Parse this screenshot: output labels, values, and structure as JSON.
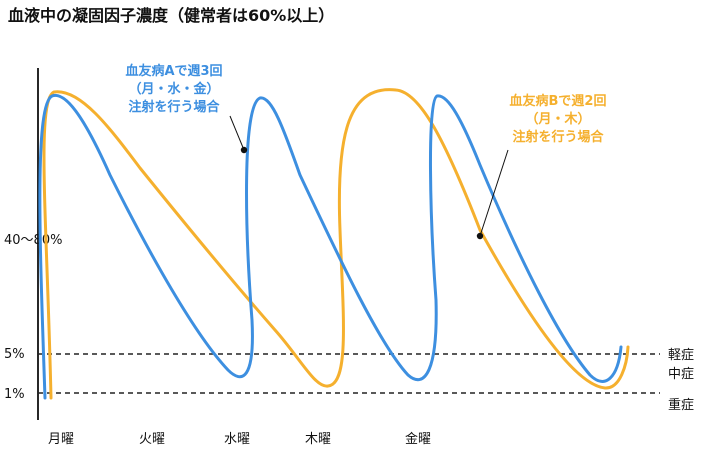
{
  "title": "血液中の凝固因子濃度（健常者は60%以上）",
  "colors": {
    "hemophilia_a": "#3d8fe0",
    "hemophilia_b": "#f5b02e",
    "axis": "#111111"
  },
  "chart_data": {
    "type": "line",
    "title": "血液中の凝固因子濃度（健常者は60%以上）",
    "x_categories": [
      "月曜",
      "火曜",
      "水曜",
      "木曜",
      "金曜"
    ],
    "y_tick_labels": [
      "40〜80%",
      "5%",
      "1%"
    ],
    "severity_labels": [
      "軽症",
      "中症",
      "重症"
    ],
    "reference_lines": [
      5,
      1
    ],
    "grid": false,
    "series": [
      {
        "name": "血友病Aで週3回（月・水・金）注射を行う場合",
        "color": "#3d8fe0",
        "injection_days": [
          "月曜",
          "水曜",
          "金曜"
        ],
        "peak": "40〜80%",
        "trough_before_next_dose": "1%〜5%"
      },
      {
        "name": "血友病Bで週2回（月・木）注射を行う場合",
        "color": "#f5b02e",
        "injection_days": [
          "月曜",
          "木曜"
        ],
        "peak": "40〜80%",
        "trough_before_next_dose": "1%〜5%"
      }
    ],
    "annotations": [
      {
        "lines": [
          "血友病Aで週3回",
          "（月・水・金）",
          "注射を行う場合"
        ],
        "series": 0
      },
      {
        "lines": [
          "血友病Bで週2回",
          "（月・木）",
          "注射を行う場合"
        ],
        "series": 1
      }
    ]
  }
}
